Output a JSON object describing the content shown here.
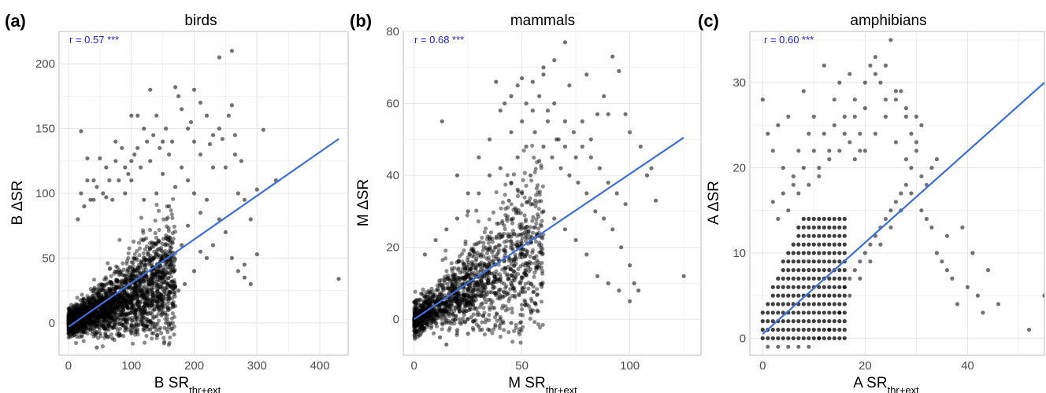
{
  "colors": {
    "points": "#000000",
    "regression_line": "#3b6fe0",
    "correlation_text": "#2222ee",
    "grid": "#e6e6e6",
    "panel_border": "#bdbdbd"
  },
  "chart_data": [
    {
      "type": "scatter",
      "panel_label": "(a)",
      "title": "birds",
      "xlabel": {
        "main": "B SR",
        "sub": "thr+ext"
      },
      "ylabel": "B ΔSR",
      "annotation": "r = 0.57 ***",
      "xlim": [
        -15,
        445
      ],
      "ylim": [
        -25,
        225
      ],
      "xticks": [
        0,
        100,
        200,
        300,
        400
      ],
      "yticks": [
        0,
        50,
        100,
        150,
        200
      ],
      "grid": true,
      "regression_line": [
        [
          0,
          -3
        ],
        [
          430,
          142
        ]
      ],
      "cluster": {
        "n": 2400,
        "x_range": [
          0,
          170
        ],
        "ratio_mean": 0.22,
        "ratio_sd": 0.15,
        "noise_sd": 5
      },
      "points": [
        [
          20,
          148
        ],
        [
          30,
          127
        ],
        [
          40,
          110
        ],
        [
          50,
          127
        ],
        [
          60,
          97
        ],
        [
          75,
          140
        ],
        [
          90,
          120
        ],
        [
          100,
          110
        ],
        [
          100,
          160
        ],
        [
          110,
          160
        ],
        [
          120,
          150
        ],
        [
          130,
          180
        ],
        [
          140,
          160
        ],
        [
          150,
          140
        ],
        [
          160,
          130
        ],
        [
          170,
          182
        ],
        [
          180,
          165
        ],
        [
          190,
          150
        ],
        [
          200,
          180
        ],
        [
          210,
          170
        ],
        [
          220,
          160
        ],
        [
          230,
          145
        ],
        [
          240,
          150
        ],
        [
          250,
          120
        ],
        [
          260,
          210
        ],
        [
          260,
          168
        ],
        [
          265,
          130
        ],
        [
          270,
          100
        ],
        [
          280,
          95
        ],
        [
          290,
          80
        ],
        [
          300,
          53
        ],
        [
          300,
          103
        ],
        [
          310,
          149
        ],
        [
          330,
          110
        ],
        [
          240,
          205
        ],
        [
          230,
          120
        ],
        [
          220,
          95
        ],
        [
          210,
          85
        ],
        [
          200,
          100
        ],
        [
          190,
          110
        ],
        [
          180,
          120
        ],
        [
          170,
          105
        ],
        [
          160,
          90
        ],
        [
          150,
          115
        ],
        [
          140,
          100
        ],
        [
          130,
          125
        ],
        [
          120,
          95
        ],
        [
          110,
          135
        ],
        [
          100,
          125
        ],
        [
          90,
          100
        ],
        [
          80,
          110
        ],
        [
          70,
          95
        ],
        [
          60,
          120
        ],
        [
          250,
          70
        ],
        [
          260,
          50
        ],
        [
          270,
          40
        ],
        [
          280,
          35
        ],
        [
          290,
          30
        ],
        [
          280,
          45
        ],
        [
          240,
          80
        ],
        [
          230,
          60
        ],
        [
          220,
          50
        ],
        [
          210,
          55
        ],
        [
          200,
          40
        ],
        [
          190,
          75
        ],
        [
          180,
          60
        ],
        [
          185,
          30
        ],
        [
          175,
          25
        ],
        [
          165,
          15
        ],
        [
          150,
          8
        ],
        [
          140,
          5
        ],
        [
          130,
          -5
        ],
        [
          120,
          -2
        ],
        [
          110,
          -5
        ],
        [
          100,
          -8
        ],
        [
          90,
          -6
        ],
        [
          80,
          -10
        ],
        [
          70,
          -12
        ],
        [
          60,
          -10
        ],
        [
          50,
          -8
        ],
        [
          45,
          -19
        ],
        [
          35,
          -5
        ],
        [
          25,
          -3
        ],
        [
          15,
          -2
        ],
        [
          430,
          34
        ],
        [
          210,
          130
        ],
        [
          200,
          140
        ],
        [
          195,
          155
        ],
        [
          225,
          138
        ],
        [
          245,
          142
        ],
        [
          255,
          160
        ],
        [
          265,
          145
        ],
        [
          275,
          125
        ],
        [
          175,
          175
        ],
        [
          165,
          140
        ],
        [
          155,
          150
        ],
        [
          145,
          135
        ],
        [
          135,
          145
        ],
        [
          125,
          140
        ],
        [
          115,
          120
        ],
        [
          105,
          130
        ],
        [
          95,
          115
        ],
        [
          85,
          135
        ],
        [
          75,
          125
        ],
        [
          65,
          110
        ],
        [
          55,
          100
        ],
        [
          45,
          105
        ],
        [
          35,
          95
        ],
        [
          25,
          90
        ],
        [
          15,
          80
        ],
        [
          20,
          100
        ],
        [
          30,
          110
        ],
        [
          40,
          95
        ]
      ]
    },
    {
      "type": "scatter",
      "panel_label": "(b)",
      "title": "mammals",
      "xlabel": {
        "main": "M SR",
        "sub": "thr+ext"
      },
      "ylabel": "M ΔSR",
      "annotation": "r = 0.68 ***",
      "xlim": [
        -5,
        133
      ],
      "ylim": [
        -10,
        80
      ],
      "xticks": [
        0,
        50,
        100
      ],
      "yticks": [
        0,
        20,
        40,
        60,
        80
      ],
      "grid": true,
      "regression_line": [
        [
          0,
          0
        ],
        [
          125,
          50.5
        ]
      ],
      "cluster": {
        "n": 1500,
        "x_range": [
          0,
          60
        ],
        "ratio_mean": 0.35,
        "ratio_sd": 0.2,
        "noise_sd": 2.5
      },
      "points": [
        [
          13,
          55
        ],
        [
          20,
          40
        ],
        [
          25,
          35
        ],
        [
          30,
          45
        ],
        [
          35,
          50
        ],
        [
          38,
          66
        ],
        [
          40,
          58
        ],
        [
          42,
          60
        ],
        [
          45,
          62
        ],
        [
          48,
          65
        ],
        [
          50,
          67
        ],
        [
          52,
          60
        ],
        [
          55,
          66
        ],
        [
          58,
          62
        ],
        [
          60,
          70
        ],
        [
          62,
          55
        ],
        [
          65,
          60
        ],
        [
          67,
          50
        ],
        [
          70,
          55
        ],
        [
          72,
          65
        ],
        [
          75,
          45
        ],
        [
          78,
          55
        ],
        [
          80,
          68
        ],
        [
          82,
          50
        ],
        [
          85,
          57
        ],
        [
          88,
          62
        ],
        [
          90,
          57
        ],
        [
          92,
          73
        ],
        [
          95,
          69
        ],
        [
          98,
          57
        ],
        [
          100,
          52
        ],
        [
          105,
          48
        ],
        [
          108,
          40
        ],
        [
          110,
          42
        ],
        [
          112,
          33
        ],
        [
          125,
          12
        ],
        [
          70,
          77
        ],
        [
          65,
          72
        ],
        [
          60,
          68
        ],
        [
          55,
          58
        ],
        [
          50,
          55
        ],
        [
          45,
          52
        ],
        [
          48,
          45
        ],
        [
          52,
          48
        ],
        [
          56,
          52
        ],
        [
          60,
          48
        ],
        [
          64,
          45
        ],
        [
          68,
          42
        ],
        [
          72,
          40
        ],
        [
          76,
          38
        ],
        [
          80,
          35
        ],
        [
          84,
          30
        ],
        [
          88,
          28
        ],
        [
          92,
          25
        ],
        [
          96,
          20
        ],
        [
          100,
          15
        ],
        [
          102,
          10
        ],
        [
          104,
          8
        ],
        [
          100,
          5
        ],
        [
          95,
          8
        ],
        [
          90,
          10
        ],
        [
          85,
          12
        ],
        [
          80,
          18
        ],
        [
          75,
          22
        ],
        [
          70,
          25
        ],
        [
          65,
          28
        ],
        [
          60,
          30
        ],
        [
          55,
          32
        ],
        [
          50,
          35
        ],
        [
          45,
          38
        ],
        [
          40,
          42
        ],
        [
          35,
          40
        ],
        [
          30,
          35
        ],
        [
          25,
          30
        ],
        [
          20,
          28
        ],
        [
          15,
          25
        ],
        [
          10,
          22
        ],
        [
          5,
          18
        ],
        [
          25,
          -4
        ],
        [
          20,
          -3
        ],
        [
          15,
          -7
        ],
        [
          12,
          -5
        ],
        [
          30,
          -2
        ],
        [
          35,
          -3
        ],
        [
          40,
          0
        ],
        [
          45,
          -1
        ],
        [
          62,
          58
        ],
        [
          66,
          50
        ],
        [
          74,
          52
        ],
        [
          78,
          48
        ],
        [
          82,
          45
        ],
        [
          86,
          42
        ],
        [
          90,
          38
        ],
        [
          94,
          35
        ],
        [
          98,
          32
        ],
        [
          70,
          48
        ],
        [
          58,
          44
        ],
        [
          54,
          40
        ],
        [
          48,
          36
        ],
        [
          44,
          33
        ]
      ]
    },
    {
      "type": "scatter",
      "panel_label": "(c)",
      "title": "amphibians",
      "xlabel": {
        "main": "A SR",
        "sub": "thr+ext"
      },
      "ylabel": "A ΔSR",
      "annotation": "r = 0.60 ***",
      "xlim": [
        -2.5,
        55
      ],
      "ylim": [
        -2,
        36
      ],
      "xticks": [
        0,
        20,
        40
      ],
      "yticks": [
        0,
        10,
        20,
        30
      ],
      "grid": true,
      "regression_line": [
        [
          0,
          0.5
        ],
        [
          55,
          30
        ]
      ],
      "lattice": {
        "x_max": 16,
        "y_max": 14,
        "x_ratio": 1.4,
        "y_base": 3
      },
      "points": [
        [
          0,
          28
        ],
        [
          1,
          24
        ],
        [
          2,
          22
        ],
        [
          3,
          25
        ],
        [
          4,
          20
        ],
        [
          5,
          26
        ],
        [
          6,
          18
        ],
        [
          7,
          22
        ],
        [
          8,
          29
        ],
        [
          9,
          24
        ],
        [
          10,
          26
        ],
        [
          11,
          20
        ],
        [
          12,
          32
        ],
        [
          13,
          22
        ],
        [
          14,
          28
        ],
        [
          15,
          30
        ],
        [
          16,
          24
        ],
        [
          17,
          31
        ],
        [
          18,
          26
        ],
        [
          19,
          22
        ],
        [
          20,
          27
        ],
        [
          21,
          32
        ],
        [
          22,
          33
        ],
        [
          23,
          30
        ],
        [
          24,
          28
        ],
        [
          25,
          35
        ],
        [
          26,
          28
        ],
        [
          27,
          29
        ],
        [
          28,
          26
        ],
        [
          29,
          24
        ],
        [
          30,
          26
        ],
        [
          31,
          25
        ],
        [
          30,
          22
        ],
        [
          29,
          20
        ],
        [
          28,
          18
        ],
        [
          27,
          17
        ],
        [
          26,
          16
        ],
        [
          25,
          15
        ],
        [
          24,
          14
        ],
        [
          23,
          13
        ],
        [
          22,
          12
        ],
        [
          21,
          11
        ],
        [
          20,
          10
        ],
        [
          19,
          9
        ],
        [
          18,
          8
        ],
        [
          17,
          7
        ],
        [
          16,
          6
        ],
        [
          31,
          15
        ],
        [
          32,
          14
        ],
        [
          33,
          13
        ],
        [
          34,
          10
        ],
        [
          35,
          9
        ],
        [
          36,
          8
        ],
        [
          37,
          7
        ],
        [
          38,
          4
        ],
        [
          39,
          13
        ],
        [
          40,
          6
        ],
        [
          42,
          5
        ],
        [
          43,
          3
        ],
        [
          52,
          1
        ],
        [
          55,
          5
        ],
        [
          46,
          4
        ],
        [
          44,
          8
        ],
        [
          41,
          10
        ],
        [
          36,
          12
        ],
        [
          33,
          20
        ],
        [
          34,
          21
        ],
        [
          31,
          19
        ],
        [
          29,
          17
        ],
        [
          27,
          15
        ],
        [
          25,
          13
        ],
        [
          23,
          11
        ],
        [
          21,
          9
        ],
        [
          19,
          7
        ],
        [
          17,
          5
        ],
        [
          15,
          3
        ],
        [
          13,
          1
        ],
        [
          11,
          0
        ],
        [
          9,
          -1
        ],
        [
          7,
          -1
        ],
        [
          5,
          -1
        ],
        [
          3,
          -1
        ],
        [
          1,
          -1
        ],
        [
          18,
          21
        ],
        [
          20,
          22
        ],
        [
          22,
          24
        ],
        [
          24,
          26
        ],
        [
          26,
          23
        ],
        [
          28,
          21
        ],
        [
          19,
          24
        ],
        [
          17,
          23
        ],
        [
          15,
          22
        ],
        [
          13,
          21
        ],
        [
          11,
          19
        ],
        [
          9,
          18
        ],
        [
          7,
          17
        ],
        [
          5,
          15
        ],
        [
          3,
          14
        ],
        [
          2,
          16
        ],
        [
          4,
          17
        ],
        [
          6,
          19
        ],
        [
          8,
          20
        ],
        [
          10,
          22
        ],
        [
          12,
          24
        ],
        [
          14,
          25
        ],
        [
          16,
          26
        ],
        [
          18,
          28
        ],
        [
          20,
          30
        ],
        [
          22,
          31
        ],
        [
          24,
          32
        ],
        [
          26,
          29
        ],
        [
          28,
          27
        ],
        [
          30,
          23
        ],
        [
          32,
          18
        ]
      ]
    }
  ]
}
